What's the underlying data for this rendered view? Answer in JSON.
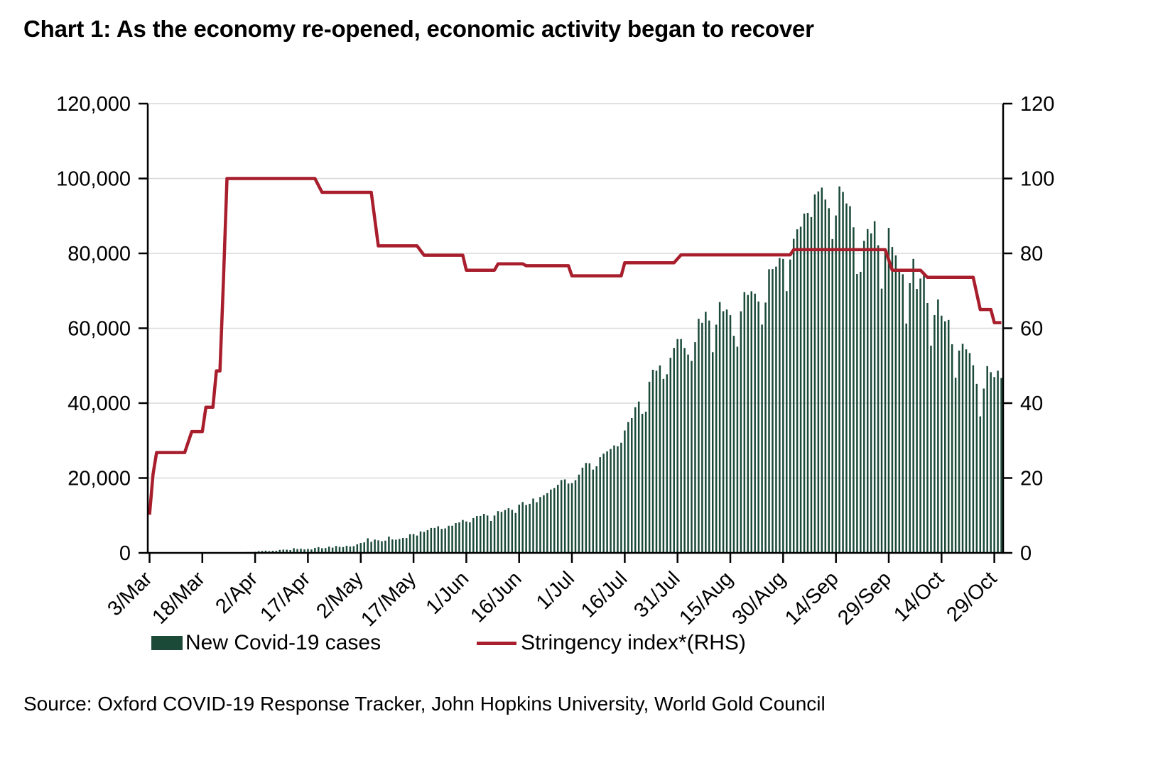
{
  "title": "Chart 1: As the economy re-opened, economic activity began to recover",
  "source": "Source: Oxford COVID-19 Response Tracker, John Hopkins University, World Gold Council",
  "legend": {
    "cases": "New Covid-19 cases",
    "stringency": "Stringency index*(RHS)"
  },
  "colors": {
    "bar": "#1b4a39",
    "line": "#a81e2c",
    "grid": "#d9d9d9",
    "axis": "#000000",
    "text": "#000000",
    "background": "#ffffff"
  },
  "chart_data": {
    "type": "bar",
    "subtype": "bar-plus-step-line-dual-axis",
    "grid": "horizontal",
    "legend_position": "bottom",
    "x_axis": {
      "start_label": "3/Mar",
      "end_label": "29/Oct",
      "tick_labels": [
        "3/Mar",
        "18/Mar",
        "2/Apr",
        "17/Apr",
        "2/May",
        "17/May",
        "1/Jun",
        "16/Jun",
        "1/Jul",
        "16/Jul",
        "31/Jul",
        "15/Aug",
        "30/Aug",
        "14/Sep",
        "29/Sep",
        "14/Oct",
        "29/Oct"
      ],
      "tick_days": [
        0,
        15,
        30,
        45,
        60,
        75,
        90,
        105,
        120,
        135,
        150,
        165,
        180,
        195,
        210,
        225,
        240
      ]
    },
    "left_axis": {
      "label": "New Covid-19 cases",
      "range": [
        0,
        120000
      ],
      "values": [
        0,
        20000,
        40000,
        60000,
        80000,
        100000,
        120000
      ],
      "ticks": [
        "0",
        "20,000",
        "40,000",
        "60,000",
        "80,000",
        "100,000",
        "120,000"
      ]
    },
    "right_axis": {
      "label": "Stringency index (RHS)",
      "range": [
        0,
        120
      ],
      "values": [
        0,
        20,
        40,
        60,
        80,
        100,
        120
      ],
      "ticks": [
        "0",
        "20",
        "40",
        "60",
        "80",
        "100",
        "120"
      ]
    },
    "series": [
      {
        "name": "New Covid-19 cases",
        "type": "bar",
        "axis": "left",
        "daily_values": [
          6,
          16,
          2,
          3,
          4,
          6,
          9,
          12,
          8,
          11,
          15,
          18,
          14,
          19,
          23,
          28,
          35,
          48,
          63,
          78,
          95,
          102,
          87,
          121,
          135,
          149,
          160,
          185,
          227,
          240,
          290,
          480,
          520,
          600,
          490,
          573,
          565,
          813,
          871,
          854,
          758,
          1243,
          1031,
          1118,
          941,
          1061,
          922,
          1334,
          1540,
          1239,
          1292,
          1667,
          1408,
          1835,
          1607,
          1561,
          1902,
          1702,
          1801,
          2293,
          2644,
          2806,
          3900,
          2958,
          3561,
          3344,
          3113,
          3277,
          4353,
          3604,
          3525,
          3725,
          3967,
          3970,
          4987,
          5050,
          4628,
          5720,
          5611,
          6088,
          6654,
          6665,
          7113,
          6414,
          6535,
          7246,
          7254,
          7964,
          8138,
          8789,
          8392,
          8171,
          9304,
          9851,
          9887,
          10428,
          9983,
          8536,
          9987,
          11156,
          10956,
          11458,
          11929,
          11502,
          10667,
          12881,
          13586,
          12787,
          13107,
          14516,
          13540,
          14933,
          15413,
          15968,
          16922,
          17296,
          18185,
          19459,
          19620,
          18522,
          18653,
          19429,
          20903,
          22771,
          24018,
          23942,
          22252,
          23135,
          25571,
          26506,
          27114,
          27754,
          28701,
          28498,
          29429,
          32695,
          34956,
          36011,
          38902,
          40425,
          37148,
          37724,
          45720,
          48916,
          48661,
          50072,
          46484,
          47703,
          52123,
          54750,
          57118,
          57117,
          54735,
          52972,
          51282,
          56282,
          62538,
          61455,
          64399,
          62064,
          53601,
          60963,
          66999,
          64553,
          65002,
          63490,
          57981,
          55079,
          64531,
          69652,
          68898,
          69874,
          69239,
          67151,
          60975,
          66873,
          75760,
          75809,
          76472,
          78761,
          78512,
          69921,
          78357,
          83883,
          86432,
          87115,
          90632,
          90802,
          89706,
          95735,
          96551,
          97570,
          94372,
          92071,
          83809,
          90123,
          97894,
          96424,
          93337,
          92605,
          86961,
          74493,
          75083,
          83347,
          86508,
          85362,
          88600,
          82170,
          70589,
          80472,
          86821,
          81693,
          79476,
          75829,
          74442,
          61267,
          72049,
          78524,
          70496,
          73272,
          74383,
          66732,
          55342,
          63509,
          67708,
          63371,
          61871,
          62212,
          55722,
          46790,
          54044,
          55839,
          54366,
          53370,
          50129,
          45148,
          36470,
          43893,
          49881,
          48268,
          46963,
          48648,
          46715
        ]
      },
      {
        "name": "Stringency index*(RHS)",
        "type": "step-line",
        "axis": "right",
        "points": [
          [
            0,
            10.2
          ],
          [
            1,
            21
          ],
          [
            2,
            26.8
          ],
          [
            10,
            26.8
          ],
          [
            12,
            32.4
          ],
          [
            15,
            32.4
          ],
          [
            16,
            38.9
          ],
          [
            18,
            38.9
          ],
          [
            19,
            48.6
          ],
          [
            20,
            48.6
          ],
          [
            21,
            72.7
          ],
          [
            22,
            100
          ],
          [
            47,
            100
          ],
          [
            49,
            96.3
          ],
          [
            63,
            96.3
          ],
          [
            65,
            82
          ],
          [
            76,
            82
          ],
          [
            78,
            79.5
          ],
          [
            89,
            79.5
          ],
          [
            90,
            75.5
          ],
          [
            98,
            75.5
          ],
          [
            99,
            77.2
          ],
          [
            106,
            77.2
          ],
          [
            107,
            76.7
          ],
          [
            119,
            76.7
          ],
          [
            120,
            74
          ],
          [
            134,
            74
          ],
          [
            135,
            77.5
          ],
          [
            149,
            77.5
          ],
          [
            151,
            79.6
          ],
          [
            182,
            79.6
          ],
          [
            183,
            81
          ],
          [
            209,
            81
          ],
          [
            211,
            75.5
          ],
          [
            219,
            75.5
          ],
          [
            221,
            73.6
          ],
          [
            234,
            73.6
          ],
          [
            236,
            65
          ],
          [
            239,
            65
          ],
          [
            240,
            61.5
          ],
          [
            242,
            61.5
          ]
        ]
      }
    ]
  }
}
